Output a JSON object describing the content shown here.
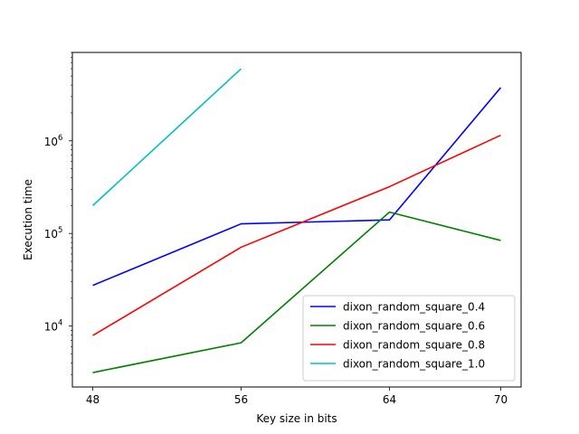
{
  "chart_data": {
    "type": "line",
    "title": "",
    "xlabel": "Key size in bits",
    "ylabel": "Execution time",
    "xscale": "linear",
    "yscale": "log",
    "xlim": [
      46.9,
      71.1
    ],
    "ylim": [
      2200,
      9000000
    ],
    "x_ticks": [
      48,
      56,
      64,
      70
    ],
    "y_ticks": [
      {
        "value": 10000,
        "base": "10",
        "exp": "4"
      },
      {
        "value": 100000,
        "base": "10",
        "exp": "5"
      },
      {
        "value": 1000000,
        "base": "10",
        "exp": "6"
      }
    ],
    "grid": false,
    "legend_position": "lower-right",
    "series": [
      {
        "name": "dixon_random_square_0.4",
        "color": "#0000ff",
        "x": [
          48,
          56,
          64,
          70
        ],
        "y": [
          27500,
          127000,
          140000,
          3750000
        ]
      },
      {
        "name": "dixon_random_square_0.6",
        "color": "#008000",
        "x": [
          48,
          56,
          64,
          70
        ],
        "y": [
          3150,
          6600,
          170000,
          84000
        ]
      },
      {
        "name": "dixon_random_square_0.8",
        "color": "#ff0000",
        "x": [
          48,
          56,
          64,
          70
        ],
        "y": [
          7900,
          71000,
          320000,
          1150000
        ]
      },
      {
        "name": "dixon_random_square_1.0",
        "color": "#00bfbf",
        "x": [
          48,
          56
        ],
        "y": [
          200000,
          6000000
        ]
      }
    ]
  }
}
